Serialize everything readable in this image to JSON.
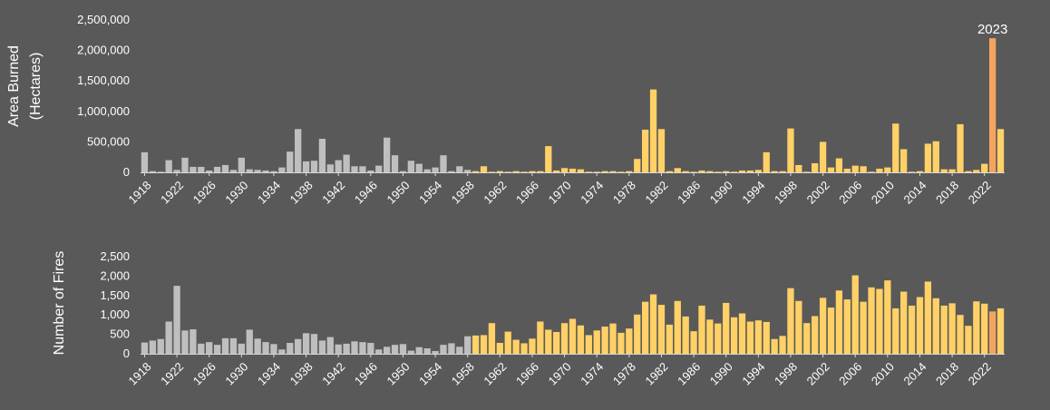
{
  "colors": {
    "background": "#595959",
    "pre_1959": "#bfbfbf",
    "post_1959": "#ffd166",
    "highlight": "#f4a460",
    "text": "#ffffff",
    "axis": "#d9d9d9"
  },
  "chart_data": [
    {
      "type": "bar",
      "ylabel_lines": [
        "Area Burned",
        "(Hectares)"
      ],
      "ylim": [
        0,
        2500000
      ],
      "yticks": [
        "0",
        "500,000",
        "1,000,000",
        "1,500,000",
        "2,000,000",
        "2,500,000"
      ],
      "annotation": "2023",
      "annotation_year": 2023,
      "x_start": 1918,
      "x_end": 2024,
      "xtick_labels": [
        "1918",
        "1922",
        "1926",
        "1930",
        "1934",
        "1938",
        "1942",
        "1946",
        "1950",
        "1954",
        "1958",
        "1962",
        "1966",
        "1970",
        "1974",
        "1978",
        "1982",
        "1986",
        "1990",
        "1994",
        "1998",
        "2002",
        "2006",
        "2010",
        "2014",
        "2018",
        "2022"
      ],
      "values": [
        330000,
        20000,
        10000,
        200000,
        40000,
        240000,
        90000,
        90000,
        30000,
        90000,
        120000,
        40000,
        240000,
        50000,
        40000,
        30000,
        20000,
        80000,
        340000,
        710000,
        180000,
        190000,
        550000,
        130000,
        200000,
        290000,
        100000,
        100000,
        30000,
        110000,
        570000,
        280000,
        20000,
        190000,
        140000,
        50000,
        80000,
        280000,
        20000,
        100000,
        40000,
        20000,
        100000,
        10000,
        20000,
        10000,
        20000,
        10000,
        20000,
        20000,
        430000,
        30000,
        70000,
        60000,
        50000,
        10000,
        10000,
        20000,
        20000,
        10000,
        20000,
        220000,
        700000,
        1360000,
        710000,
        20000,
        70000,
        20000,
        10000,
        30000,
        20000,
        10000,
        20000,
        10000,
        30000,
        30000,
        40000,
        330000,
        20000,
        20000,
        720000,
        120000,
        10000,
        150000,
        500000,
        80000,
        230000,
        60000,
        110000,
        100000,
        10000,
        60000,
        80000,
        800000,
        380000,
        10000,
        20000,
        470000,
        510000,
        50000,
        50000,
        790000,
        20000,
        40000,
        140000,
        2200000,
        710000
      ]
    },
    {
      "type": "bar",
      "ylabel_lines": [
        "Number of Fires"
      ],
      "ylim": [
        0,
        2500
      ],
      "yticks": [
        "0",
        "500",
        "1,000",
        "1,500",
        "2,000",
        "2,500"
      ],
      "x_start": 1918,
      "x_end": 2024,
      "xtick_labels": [
        "1918",
        "1922",
        "1926",
        "1930",
        "1934",
        "1938",
        "1942",
        "1946",
        "1950",
        "1954",
        "1958",
        "1962",
        "1966",
        "1970",
        "1974",
        "1978",
        "1982",
        "1986",
        "1990",
        "1994",
        "1998",
        "2002",
        "2006",
        "2010",
        "2014",
        "2018",
        "2022"
      ],
      "values": [
        290,
        340,
        380,
        830,
        1750,
        600,
        630,
        260,
        300,
        230,
        400,
        400,
        260,
        620,
        390,
        300,
        250,
        110,
        280,
        380,
        530,
        510,
        340,
        430,
        240,
        260,
        320,
        300,
        280,
        110,
        180,
        230,
        250,
        80,
        170,
        140,
        70,
        230,
        270,
        180,
        450,
        470,
        480,
        790,
        280,
        570,
        360,
        270,
        390,
        830,
        620,
        560,
        790,
        900,
        730,
        480,
        600,
        700,
        780,
        540,
        650,
        1010,
        1340,
        1530,
        1260,
        750,
        1360,
        960,
        580,
        1240,
        880,
        780,
        1310,
        940,
        1040,
        830,
        860,
        820,
        380,
        460,
        1690,
        1360,
        790,
        970,
        1440,
        1190,
        1630,
        1400,
        2020,
        1340,
        1710,
        1670,
        1890,
        1170,
        1600,
        1240,
        1460,
        1860,
        1430,
        1240,
        1300,
        1000,
        720,
        1350,
        1290,
        1090,
        1170
      ]
    }
  ]
}
